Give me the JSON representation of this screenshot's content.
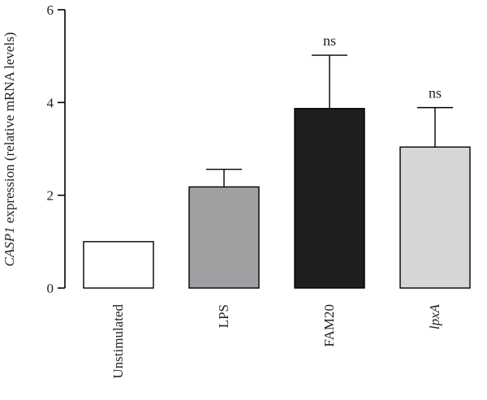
{
  "chart_data": {
    "type": "bar",
    "ylabel_italic_part": "CASP1",
    "ylabel_rest": " expression (relative mRNA levels)",
    "ylim": [
      0,
      6
    ],
    "yticks": [
      0,
      2,
      4,
      6
    ],
    "categories": [
      "Unstimulated",
      "LPS",
      "FAM20",
      "lpxA"
    ],
    "italic_categories": [
      "lpxA"
    ],
    "values": [
      1.0,
      2.18,
      3.87,
      3.04
    ],
    "errors": [
      0,
      0.38,
      1.15,
      0.85
    ],
    "annotations": [
      "",
      "",
      "ns",
      "ns"
    ],
    "colors": [
      "#ffffff",
      "#a0a0a3",
      "#1e1e1e",
      "#d6d6d6"
    ]
  }
}
